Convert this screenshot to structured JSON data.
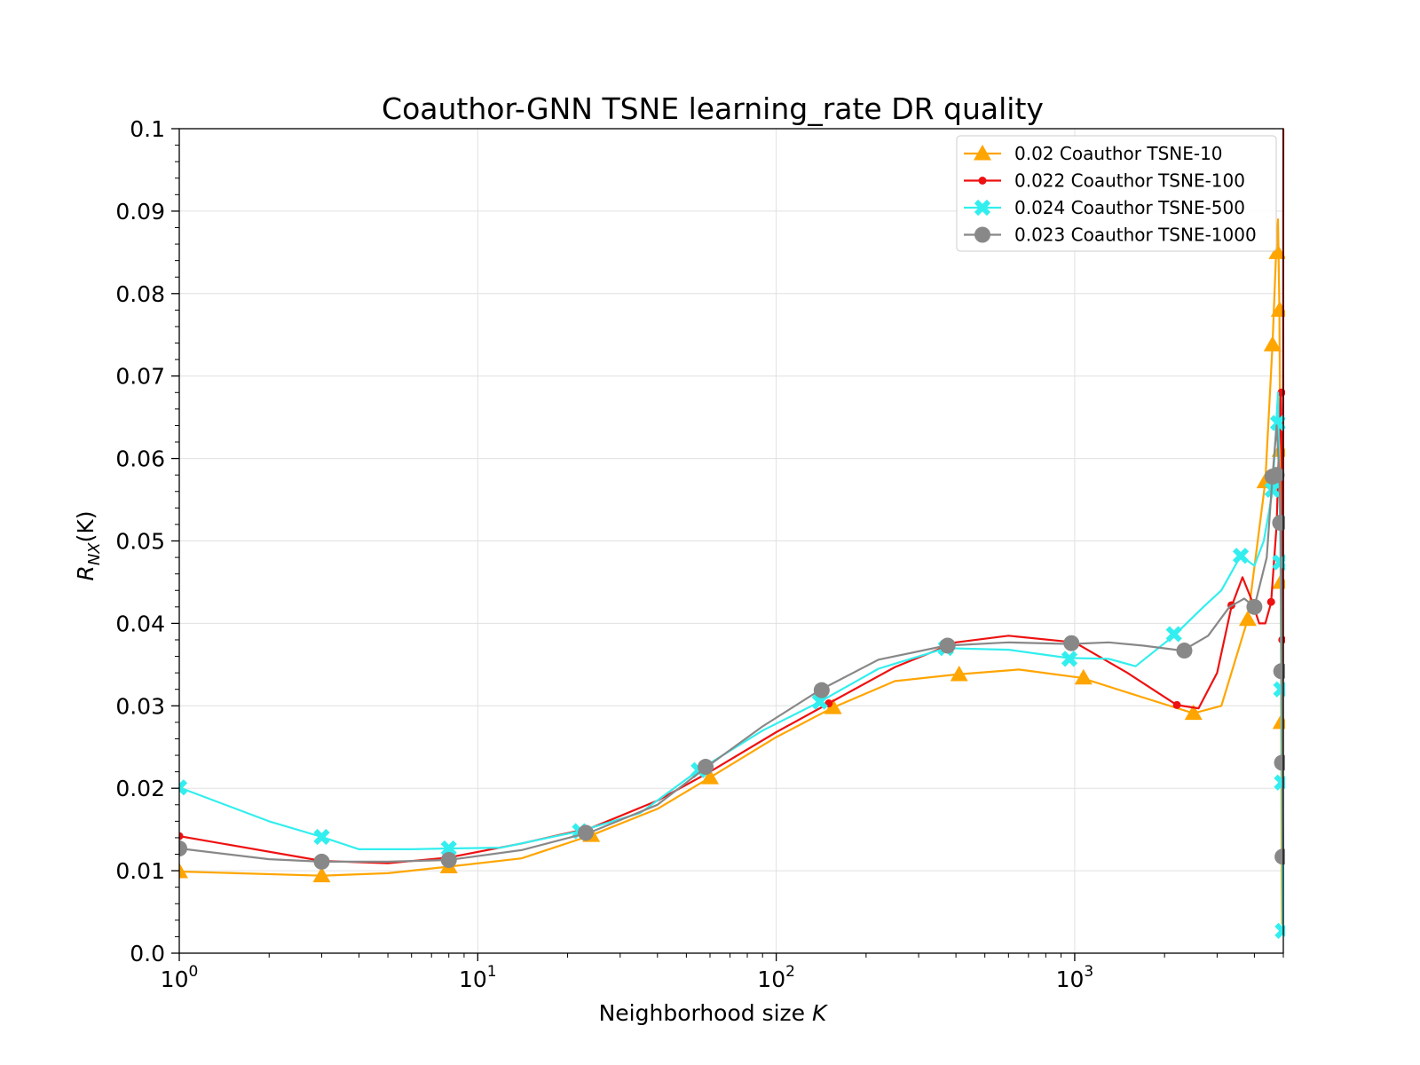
{
  "chart_data": {
    "type": "line",
    "title": "Coauthor-GNN TSNE learning_rate DR quality",
    "xlabel": "Neighborhood size",
    "xlabel_var": "K",
    "ylabel": "R",
    "ylabel_sub": "NX",
    "ylabel_arg": "(K)",
    "x_scale": "log",
    "xlim": [
      1,
      5000
    ],
    "ylim": [
      0.0,
      0.1
    ],
    "x_ticks": [
      {
        "value": 1,
        "base": "10",
        "exp": "0"
      },
      {
        "value": 10,
        "base": "10",
        "exp": "1"
      },
      {
        "value": 100,
        "base": "10",
        "exp": "2"
      },
      {
        "value": 1000,
        "base": "10",
        "exp": "3"
      }
    ],
    "y_ticks": [
      "0.0",
      "0.01",
      "0.02",
      "0.03",
      "0.04",
      "0.05",
      "0.06",
      "0.07",
      "0.08",
      "0.09",
      "0.1"
    ],
    "grid": true,
    "legend_position": "top-right",
    "series": [
      {
        "name": "0.02 Coauthor TSNE-10",
        "color": "#FFA500",
        "marker": "triangle",
        "x": [
          1,
          3,
          5,
          8,
          14,
          24,
          40,
          60,
          100,
          155,
          250,
          400,
          650,
          1050,
          1700,
          2500,
          3100,
          3800,
          4350,
          4600,
          4730,
          4800,
          4850,
          4880,
          4900,
          4920,
          4935,
          4950
        ],
        "y": [
          0.0099,
          0.0094,
          0.0097,
          0.0105,
          0.0115,
          0.0143,
          0.0175,
          0.0213,
          0.0262,
          0.0298,
          0.033,
          0.0338,
          0.0344,
          0.0334,
          0.031,
          0.0291,
          0.03,
          0.0405,
          0.0572,
          0.0738,
          0.085,
          0.089,
          0.078,
          0.061,
          0.045,
          0.028,
          0.01,
          0.0035
        ],
        "markers_x": [
          1,
          3,
          8,
          24,
          60,
          155,
          410,
          1070,
          2500,
          3800,
          4350,
          4600,
          4780,
          4860,
          4890,
          4910,
          4925
        ],
        "markers_y": [
          0.0099,
          0.0094,
          0.0105,
          0.0143,
          0.0213,
          0.0298,
          0.0338,
          0.0334,
          0.0291,
          0.0405,
          0.0572,
          0.0738,
          0.085,
          0.078,
          0.061,
          0.045,
          0.028
        ]
      },
      {
        "name": "0.022 Coauthor TSNE-100",
        "color": "#EE1111",
        "marker": "point",
        "x": [
          1,
          3,
          5,
          8,
          14,
          24,
          40,
          60,
          100,
          150,
          250,
          400,
          600,
          1000,
          1500,
          2200,
          2600,
          3000,
          3350,
          3650,
          3900,
          4150,
          4350,
          4550,
          4750,
          4900,
          4960,
          4980,
          5000
        ],
        "y": [
          0.0142,
          0.0112,
          0.0109,
          0.0116,
          0.0133,
          0.0152,
          0.0185,
          0.022,
          0.0268,
          0.0303,
          0.0347,
          0.0377,
          0.0385,
          0.0377,
          0.034,
          0.0301,
          0.0297,
          0.034,
          0.042,
          0.0456,
          0.043,
          0.04,
          0.04,
          0.0425,
          0.052,
          0.068,
          0.055,
          0.02,
          0.1
        ],
        "markers_x": [
          1,
          150,
          2200,
          3350,
          4550,
          4930,
          4960
        ],
        "markers_y": [
          0.0142,
          0.0303,
          0.0301,
          0.0422,
          0.0426,
          0.068,
          0.038
        ]
      },
      {
        "name": "0.024 Coauthor TSNE-500",
        "color": "#33EEEE",
        "marker": "x",
        "x": [
          1,
          2,
          3,
          4,
          6,
          8,
          12,
          22,
          35,
          55,
          90,
          140,
          220,
          370,
          600,
          950,
          1300,
          1600,
          2150,
          2700,
          3100,
          3600,
          4000,
          4300,
          4600,
          4800,
          4900,
          4950,
          4980
        ],
        "y": [
          0.0201,
          0.016,
          0.0141,
          0.0126,
          0.0126,
          0.0127,
          0.0128,
          0.0148,
          0.017,
          0.0222,
          0.027,
          0.0305,
          0.0345,
          0.037,
          0.0368,
          0.0358,
          0.0357,
          0.0348,
          0.0385,
          0.042,
          0.044,
          0.0482,
          0.047,
          0.05,
          0.056,
          0.068,
          0.047,
          0.02,
          0.0027
        ],
        "markers_x": [
          1,
          3,
          8,
          22,
          55,
          140,
          370,
          960,
          2150,
          3600,
          4600,
          4800,
          4880,
          4920,
          4950,
          4980
        ],
        "markers_y": [
          0.0201,
          0.0141,
          0.0127,
          0.0148,
          0.0222,
          0.0305,
          0.037,
          0.0357,
          0.0387,
          0.0482,
          0.0562,
          0.0643,
          0.0474,
          0.032,
          0.0207,
          0.0027
        ]
      },
      {
        "name": "0.023 Coauthor TSNE-1000",
        "color": "#888888",
        "marker": "circle",
        "x": [
          1,
          2,
          3,
          5,
          8,
          14,
          24,
          40,
          58,
          90,
          140,
          220,
          370,
          600,
          970,
          1300,
          1700,
          2300,
          2800,
          3300,
          3700,
          4000,
          4400,
          4600,
          4750,
          4850,
          4900,
          4940,
          4970,
          4990
        ],
        "y": [
          0.0127,
          0.0114,
          0.0111,
          0.0111,
          0.0113,
          0.0125,
          0.0147,
          0.018,
          0.0225,
          0.0275,
          0.0319,
          0.0356,
          0.0373,
          0.0377,
          0.0375,
          0.0377,
          0.0373,
          0.0367,
          0.0385,
          0.042,
          0.043,
          0.042,
          0.048,
          0.0578,
          0.064,
          0.058,
          0.052,
          0.034,
          0.023,
          0.0117
        ],
        "markers_x": [
          1,
          3,
          8,
          23,
          58,
          142,
          375,
          975,
          2330,
          4000,
          4600,
          4750,
          4880,
          4920,
          4950,
          4970
        ],
        "markers_y": [
          0.0127,
          0.0111,
          0.0113,
          0.0146,
          0.0226,
          0.0319,
          0.0373,
          0.0376,
          0.0367,
          0.042,
          0.0578,
          0.058,
          0.0522,
          0.0342,
          0.0231,
          0.0117
        ]
      }
    ]
  }
}
